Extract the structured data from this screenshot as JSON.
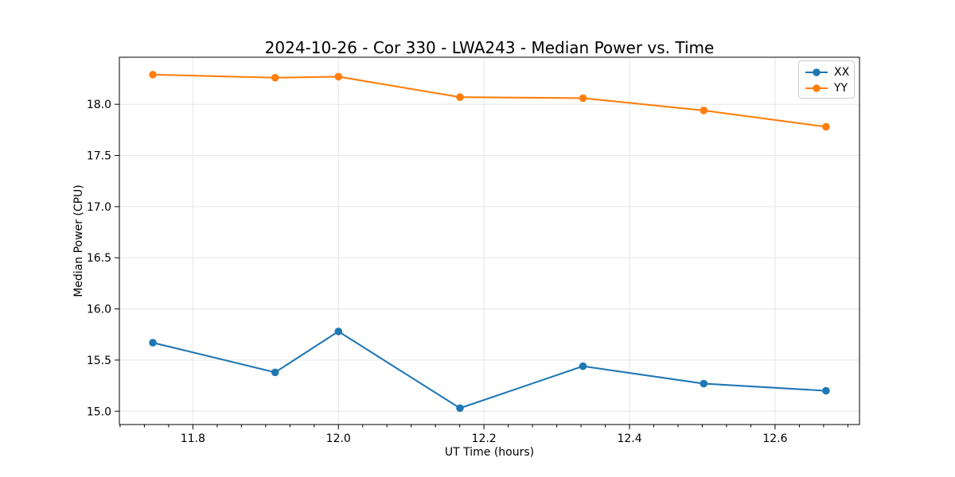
{
  "chart_data": {
    "type": "line",
    "title": "2024-10-26 - Cor 330 - LWA243 - Median Power vs. Time",
    "xlabel": "UT Time (hours)",
    "ylabel": "Median Power (CPU)",
    "xlim": [
      11.699,
      12.716
    ],
    "ylim": [
      14.87,
      18.46
    ],
    "xticks": [
      11.8,
      12.0,
      12.2,
      12.4,
      12.6
    ],
    "xtick_labels": [
      "11.8",
      "12.0",
      "12.2",
      "12.4",
      "12.6"
    ],
    "yticks": [
      15.0,
      15.5,
      16.0,
      16.5,
      17.0,
      17.5,
      18.0
    ],
    "ytick_labels": [
      "15.0",
      "15.5",
      "16.0",
      "16.5",
      "17.0",
      "17.5",
      "18.0"
    ],
    "x_minor_divisions": 6,
    "grid": true,
    "grid_color": "#e6e6e6",
    "legend_position": "upper right",
    "x": [
      11.745,
      11.913,
      12.0,
      12.167,
      12.336,
      12.502,
      12.67
    ],
    "series": [
      {
        "name": "XX",
        "color": "#1f77b4",
        "values": [
          15.67,
          15.38,
          15.78,
          15.03,
          15.44,
          15.27,
          15.2
        ]
      },
      {
        "name": "YY",
        "color": "#ff7f0e",
        "values": [
          18.29,
          18.26,
          18.27,
          18.07,
          18.06,
          17.94,
          17.78
        ]
      }
    ]
  }
}
